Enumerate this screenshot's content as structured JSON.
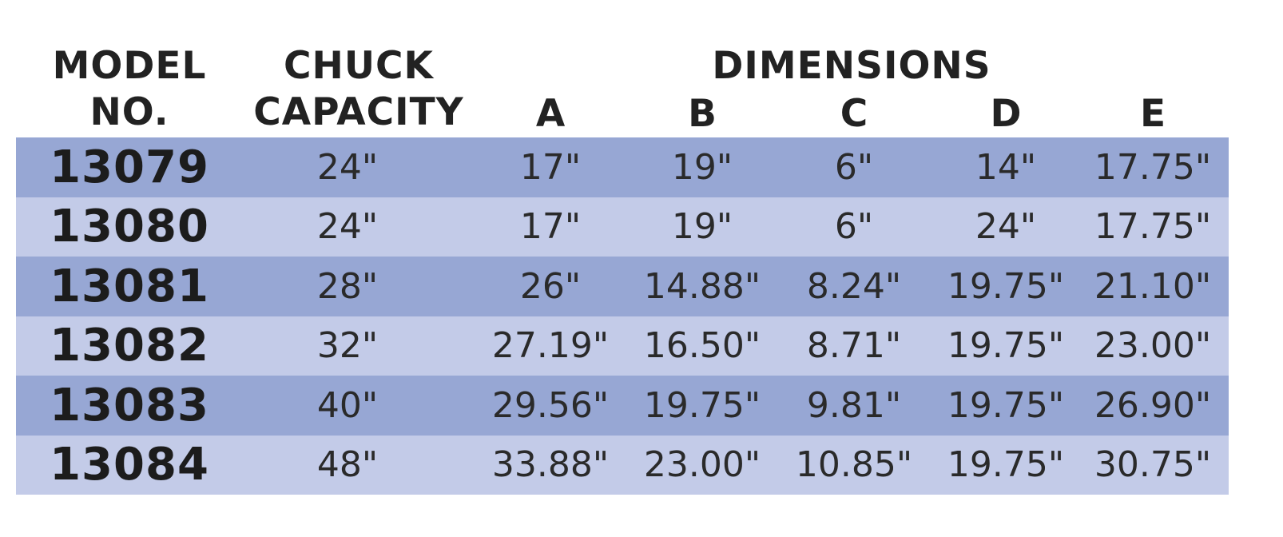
{
  "header": {
    "model_line1": "MODEL",
    "model_line2": "NO.",
    "chuck_line1": "CHUCK",
    "chuck_line2": "CAPACITY",
    "dimensions": "DIMENSIONS",
    "dim_labels": [
      "A",
      "B",
      "C",
      "D",
      "E"
    ]
  },
  "row_colors": {
    "dark": "#97a7d4",
    "light": "#c3cbe8"
  },
  "rows": [
    {
      "model": "13079",
      "chuck": "24\"",
      "a": "17\"",
      "b": "19\"",
      "c": "6\"",
      "d": "14\"",
      "e": "17.75\""
    },
    {
      "model": "13080",
      "chuck": "24\"",
      "a": "17\"",
      "b": "19\"",
      "c": "6\"",
      "d": "24\"",
      "e": "17.75\""
    },
    {
      "model": "13081",
      "chuck": "28\"",
      "a": "26\"",
      "b": "14.88\"",
      "c": "8.24\"",
      "d": "19.75\"",
      "e": "21.10\""
    },
    {
      "model": "13082",
      "chuck": "32\"",
      "a": "27.19\"",
      "b": "16.50\"",
      "c": "8.71\"",
      "d": "19.75\"",
      "e": "23.00\""
    },
    {
      "model": "13083",
      "chuck": "40\"",
      "a": "29.56\"",
      "b": "19.75\"",
      "c": "9.81\"",
      "d": "19.75\"",
      "e": "26.90\""
    },
    {
      "model": "13084",
      "chuck": "48\"",
      "a": "33.88\"",
      "b": "23.00\"",
      "c": "10.85\"",
      "d": "19.75\"",
      "e": "30.75\""
    }
  ]
}
